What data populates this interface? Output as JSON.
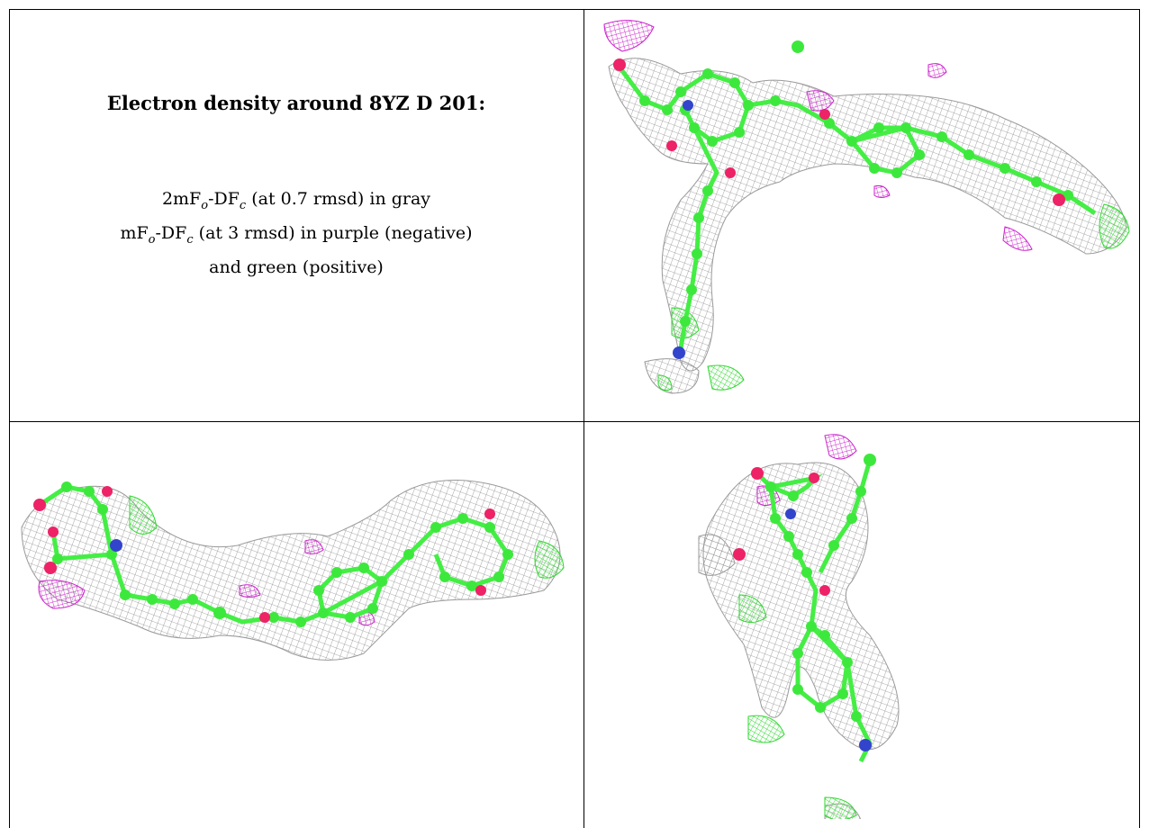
{
  "caption": {
    "title": "Electron density around 8YZ D 201:",
    "line1": {
      "pre": "2mF",
      "sub1": "o",
      "mid": "-DF",
      "sub2": "c",
      "post": " (at 0.7 rmsd) in gray"
    },
    "line2": {
      "pre": "mF",
      "sub1": "o",
      "mid": "-DF",
      "sub2": "c",
      "post": " (at 3 rmsd) in purple (negative)"
    },
    "line3": "and green (positive)"
  },
  "colors": {
    "gray_mesh": "#9a9a9a",
    "purple_mesh": "#d020d0",
    "green_mesh": "#33dd33",
    "carbon": "#44ee44",
    "oxygen": "#ee2266",
    "nitrogen": "#3344cc",
    "border": "#000000"
  },
  "panels": [
    {
      "name": "view-top-right",
      "icon": "molecule-density-view-1"
    },
    {
      "name": "view-bottom-left",
      "icon": "molecule-density-view-2"
    },
    {
      "name": "view-bottom-right",
      "icon": "molecule-density-view-3"
    }
  ]
}
